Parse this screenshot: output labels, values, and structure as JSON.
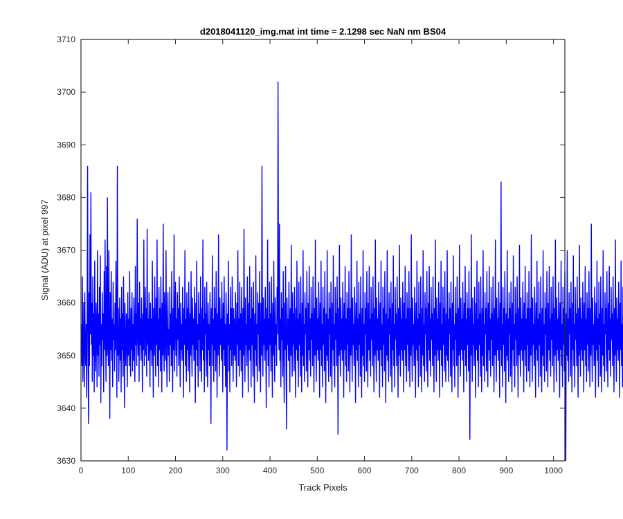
{
  "chart_data": {
    "type": "line",
    "title": "d2018041120_img.mat int time = 2.1298 sec  NaN nm BS04",
    "xlabel": "Track Pixels",
    "ylabel": "Signal (ADU) at pixel 997",
    "xlim": [
      0,
      1024
    ],
    "ylim": [
      3630,
      3710
    ],
    "xticks": [
      0,
      100,
      200,
      300,
      400,
      500,
      600,
      700,
      800,
      900,
      1000
    ],
    "yticks": [
      3630,
      3640,
      3650,
      3660,
      3670,
      3680,
      3690,
      3700,
      3710
    ],
    "grid": false,
    "legend": "none",
    "line_color": "#0000ff",
    "series": [
      {
        "x_start": 1,
        "x_step": 1,
        "values": [
          3656,
          3648,
          3665,
          3645,
          3651,
          3660,
          3644,
          3662,
          3652,
          3648,
          3656,
          3642,
          3658,
          3686,
          3650,
          3637,
          3662,
          3648,
          3673,
          3654,
          3681,
          3652,
          3660,
          3645,
          3665,
          3650,
          3658,
          3643,
          3668,
          3652,
          3647,
          3660,
          3655,
          3644,
          3670,
          3650,
          3658,
          3646,
          3663,
          3652,
          3669,
          3641,
          3656,
          3648,
          3662,
          3653,
          3658,
          3643,
          3666,
          3651,
          3672,
          3654,
          3645,
          3667,
          3650,
          3680,
          3652,
          3648,
          3670,
          3655,
          3638,
          3662,
          3651,
          3666,
          3649,
          3657,
          3644,
          3664,
          3653,
          3656,
          3647,
          3660,
          3651,
          3668,
          3655,
          3642,
          3686,
          3650,
          3659,
          3645,
          3652,
          3661,
          3649,
          3657,
          3643,
          3663,
          3651,
          3658,
          3646,
          3665,
          3654,
          3640,
          3660,
          3652,
          3648,
          3658,
          3655,
          3644,
          3662,
          3650,
          3657,
          3648,
          3666,
          3653,
          3646,
          3659,
          3651,
          3662,
          3647,
          3656,
          3649,
          3661,
          3653,
          3645,
          3667,
          3652,
          3658,
          3648,
          3676,
          3654,
          3650,
          3660,
          3645,
          3664,
          3652,
          3657,
          3649,
          3661,
          3655,
          3643,
          3658,
          3651,
          3672,
          3648,
          3656,
          3663,
          3650,
          3659,
          3646,
          3674,
          3652,
          3657,
          3649,
          3662,
          3654,
          3644,
          3660,
          3651,
          3657,
          3648,
          3668,
          3653,
          3642,
          3659,
          3650,
          3665,
          3654,
          3646,
          3661,
          3652,
          3672,
          3648,
          3657,
          3644,
          3663,
          3651,
          3659,
          3647,
          3665,
          3655,
          3643,
          3660,
          3650,
          3675,
          3652,
          3647,
          3662,
          3654,
          3649,
          3670,
          3651,
          3644,
          3657,
          3662,
          3650,
          3655,
          3645,
          3663,
          3652,
          3658,
          3648,
          3666,
          3653,
          3643,
          3659,
          3651,
          3673,
          3647,
          3656,
          3664,
          3650,
          3657,
          3646,
          3662,
          3653,
          3659,
          3648,
          3665,
          3652,
          3644,
          3660,
          3651,
          3656,
          3649,
          3663,
          3654,
          3642,
          3659,
          3652,
          3670,
          3648,
          3657,
          3645,
          3662,
          3651,
          3659,
          3647,
          3664,
          3655,
          3643,
          3658,
          3650,
          3666,
          3653,
          3646,
          3661,
          3652,
          3657,
          3649,
          3663,
          3654,
          3641,
          3660,
          3651,
          3668,
          3648,
          3656,
          3644,
          3662,
          3653,
          3658,
          3647,
          3665,
          3652,
          3645,
          3659,
          3651,
          3672,
          3649,
          3657,
          3643,
          3663,
          3654,
          3658,
          3646,
          3664,
          3652,
          3644,
          3660,
          3651,
          3656,
          3648,
          3662,
          3653,
          3637,
          3659,
          3652,
          3669,
          3648,
          3657,
          3645,
          3663,
          3651,
          3659,
          3647,
          3666,
          3654,
          3642,
          3658,
          3650,
          3673,
          3653,
          3646,
          3661,
          3652,
          3657,
          3649,
          3664,
          3655,
          3643,
          3660,
          3651,
          3665,
          3648,
          3656,
          3644,
          3662,
          3653,
          3632,
          3658,
          3652,
          3668,
          3647,
          3656,
          3643,
          3663,
          3651,
          3659,
          3648,
          3665,
          3654,
          3645,
          3659,
          3650,
          3657,
          3649,
          3662,
          3653,
          3644,
          3660,
          3652,
          3670,
          3648,
          3657,
          3646,
          3664,
          3651,
          3658,
          3647,
          3663,
          3655,
          3642,
          3659,
          3650,
          3674,
          3653,
          3645,
          3661,
          3652,
          3656,
          3648,
          3665,
          3654,
          3643,
          3660,
          3651,
          3667,
          3649,
          3657,
          3644,
          3663,
          3652,
          3659,
          3646,
          3664,
          3653,
          3641,
          3658,
          3651,
          3669,
          3648,
          3656,
          3645,
          3662,
          3654,
          3660,
          3647,
          3666,
          3652,
          3643,
          3660,
          3650,
          3686,
          3653,
          3646,
          3661,
          3652,
          3657,
          3649,
          3663,
          3655,
          3640,
          3659,
          3651,
          3672,
          3648,
          3657,
          3644,
          3664,
          3652,
          3658,
          3647,
          3665,
          3654,
          3642,
          3660,
          3650,
          3668,
          3653,
          3645,
          3661,
          3652,
          3656,
          3648,
          3663,
          3654,
          3702,
          3659,
          3651,
          3675,
          3649,
          3657,
          3644,
          3662,
          3653,
          3659,
          3646,
          3666,
          3652,
          3641,
          3660,
          3651,
          3667,
          3648,
          3636,
          3661,
          3652,
          3657,
          3649,
          3664,
          3655,
          3643,
          3659,
          3650,
          3671,
          3653,
          3646,
          3662,
          3652,
          3658,
          3647,
          3663,
          3654,
          3642,
          3659,
          3651,
          3668,
          3649,
          3657,
          3644,
          3664,
          3652,
          3658,
          3646,
          3665,
          3653,
          3643,
          3660,
          3650,
          3670,
          3648,
          3656,
          3645,
          3662,
          3654,
          3659,
          3647,
          3666,
          3652,
          3644,
          3660,
          3651,
          3667,
          3649,
          3657,
          3646,
          3663,
          3653,
          3658,
          3648,
          3665,
          3654,
          3643,
          3659,
          3650,
          3672,
          3652,
          3645,
          3661,
          3651,
          3657,
          3649,
          3664,
          3655,
          3642,
          3660,
          3651,
          3668,
          3648,
          3656,
          3644,
          3663,
          3652,
          3659,
          3647,
          3666,
          3653,
          3641,
          3658,
          3650,
          3670,
          3649,
          3657,
          3645,
          3662,
          3654,
          3659,
          3646,
          3664,
          3652,
          3643,
          3660,
          3651,
          3669,
          3648,
          3656,
          3644,
          3663,
          3653,
          3658,
          3648,
          3665,
          3654,
          3635,
          3659,
          3650,
          3671,
          3652,
          3646,
          3661,
          3651,
          3657,
          3649,
          3664,
          3655,
          3642,
          3660,
          3651,
          3667,
          3648,
          3657,
          3645,
          3662,
          3652,
          3659,
          3647,
          3666,
          3654,
          3643,
          3659,
          3650,
          3673,
          3653,
          3645,
          3661,
          3652,
          3656,
          3648,
          3663,
          3654,
          3641,
          3660,
          3651,
          3668,
          3649,
          3657,
          3644,
          3664,
          3652,
          3658,
          3646,
          3665,
          3653,
          3642,
          3659,
          3650,
          3670,
          3648,
          3656,
          3645,
          3662,
          3654,
          3659,
          3647,
          3666,
          3652,
          3644,
          3660,
          3651,
          3667,
          3649,
          3657,
          3646,
          3663,
          3653,
          3658,
          3648,
          3665,
          3654,
          3643,
          3659,
          3650,
          3672,
          3652,
          3645,
          3661,
          3651,
          3657,
          3649,
          3664,
          3655,
          3642,
          3660,
          3651,
          3668,
          3648,
          3656,
          3644,
          3663,
          3652,
          3659,
          3647,
          3666,
          3653,
          3641,
          3658,
          3650,
          3670,
          3649,
          3657,
          3645,
          3662,
          3654,
          3659,
          3646,
          3664,
          3652,
          3643,
          3660,
          3651,
          3669,
          3648,
          3656,
          3644,
          3663,
          3653,
          3658,
          3648,
          3665,
          3654,
          3642,
          3659,
          3650,
          3671,
          3652,
          3646,
          3661,
          3651,
          3657,
          3649,
          3664,
          3655,
          3643,
          3660,
          3651,
          3667,
          3648,
          3657,
          3645,
          3662,
          3652,
          3659,
          3647,
          3666,
          3654,
          3644,
          3659,
          3650,
          3673,
          3653,
          3645,
          3661,
          3652,
          3656,
          3648,
          3663,
          3654,
          3642,
          3660,
          3651,
          3668,
          3649,
          3657,
          3644,
          3664,
          3652,
          3658,
          3646,
          3665,
          3653,
          3643,
          3659,
          3650,
          3670,
          3648,
          3656,
          3645,
          3662,
          3654,
          3659,
          3647,
          3666,
          3652,
          3644,
          3660,
          3651,
          3667,
          3649,
          3657,
          3646,
          3663,
          3653,
          3658,
          3648,
          3665,
          3654,
          3643,
          3659,
          3650,
          3672,
          3652,
          3645,
          3661,
          3651,
          3657,
          3649,
          3664,
          3655,
          3642,
          3660,
          3651,
          3668,
          3648,
          3656,
          3644,
          3663,
          3652,
          3659,
          3647,
          3666,
          3653,
          3645,
          3658,
          3650,
          3670,
          3649,
          3657,
          3645,
          3662,
          3654,
          3659,
          3646,
          3664,
          3652,
          3643,
          3660,
          3651,
          3669,
          3648,
          3656,
          3644,
          3663,
          3653,
          3658,
          3648,
          3665,
          3654,
          3642,
          3659,
          3650,
          3671,
          3652,
          3646,
          3661,
          3651,
          3657,
          3649,
          3664,
          3655,
          3643,
          3660,
          3651,
          3667,
          3648,
          3657,
          3645,
          3662,
          3652,
          3659,
          3647,
          3666,
          3654,
          3634,
          3659,
          3650,
          3673,
          3653,
          3645,
          3661,
          3652,
          3656,
          3648,
          3663,
          3654,
          3642,
          3660,
          3651,
          3668,
          3649,
          3657,
          3644,
          3664,
          3652,
          3658,
          3646,
          3665,
          3653,
          3643,
          3659,
          3650,
          3670,
          3648,
          3656,
          3645,
          3662,
          3654,
          3659,
          3647,
          3666,
          3652,
          3644,
          3660,
          3651,
          3667,
          3649,
          3657,
          3646,
          3663,
          3653,
          3658,
          3648,
          3665,
          3654,
          3643,
          3659,
          3650,
          3672,
          3652,
          3645,
          3661,
          3651,
          3657,
          3649,
          3664,
          3655,
          3642,
          3660,
          3651,
          3683,
          3648,
          3656,
          3644,
          3663,
          3652,
          3659,
          3647,
          3666,
          3653,
          3641,
          3658,
          3650,
          3670,
          3649,
          3657,
          3645,
          3662,
          3654,
          3659,
          3646,
          3664,
          3652,
          3643,
          3660,
          3651,
          3669,
          3648,
          3656,
          3644,
          3663,
          3653,
          3658,
          3648,
          3665,
          3654,
          3642,
          3659,
          3650,
          3671,
          3652,
          3646,
          3661,
          3651,
          3657,
          3649,
          3664,
          3655,
          3643,
          3660,
          3651,
          3667,
          3648,
          3657,
          3645,
          3662,
          3652,
          3659,
          3647,
          3666,
          3654,
          3644,
          3659,
          3650,
          3673,
          3653,
          3645,
          3661,
          3652,
          3656,
          3648,
          3663,
          3654,
          3642,
          3660,
          3651,
          3668,
          3649,
          3657,
          3644,
          3664,
          3652,
          3658,
          3646,
          3665,
          3653,
          3643,
          3659,
          3650,
          3670,
          3648,
          3656,
          3645,
          3662,
          3654,
          3659,
          3647,
          3666,
          3652,
          3644,
          3660,
          3651,
          3667,
          3649,
          3657,
          3646,
          3663,
          3653,
          3658,
          3648,
          3665,
          3654,
          3643,
          3659,
          3650,
          3672,
          3652,
          3645,
          3661,
          3651,
          3657,
          3649,
          3664,
          3655,
          3642,
          3660,
          3651,
          3668,
          3648,
          3656,
          3644,
          3663,
          3652,
          3659,
          3647,
          3666,
          3653,
          3630,
          3658,
          3650,
          3670,
          3649,
          3657,
          3645,
          3662,
          3654,
          3659,
          3646,
          3664,
          3652,
          3643,
          3660,
          3651,
          3669,
          3648,
          3656,
          3644,
          3663,
          3653,
          3658,
          3648,
          3665,
          3654,
          3642,
          3659,
          3650,
          3671,
          3652,
          3646,
          3661,
          3651,
          3657,
          3649,
          3664,
          3655,
          3643,
          3660,
          3651,
          3667,
          3648,
          3657,
          3645,
          3662,
          3652,
          3659,
          3647,
          3666,
          3654,
          3644,
          3659,
          3650,
          3675,
          3653,
          3645,
          3661,
          3652,
          3656,
          3648,
          3663,
          3654,
          3642,
          3660,
          3651,
          3668,
          3649,
          3657,
          3644,
          3664,
          3652,
          3658,
          3646,
          3665,
          3653,
          3643,
          3659,
          3650,
          3670,
          3648,
          3656,
          3645,
          3662,
          3654,
          3659,
          3647,
          3666,
          3652,
          3644,
          3660,
          3651,
          3667,
          3649,
          3657,
          3646,
          3663,
          3653,
          3658,
          3648,
          3665,
          3654,
          3643,
          3659,
          3650,
          3672,
          3652,
          3645,
          3661,
          3651,
          3657,
          3649,
          3664,
          3655,
          3642,
          3660,
          3651,
          3668,
          3648,
          3656,
          3644,
          3663,
          3652,
          3659,
          3647,
          3666,
          3653,
          3641,
          3658,
          3650,
          3670,
          3649,
          3657,
          3645,
          3662,
          3654,
          3668
        ]
      }
    ]
  }
}
